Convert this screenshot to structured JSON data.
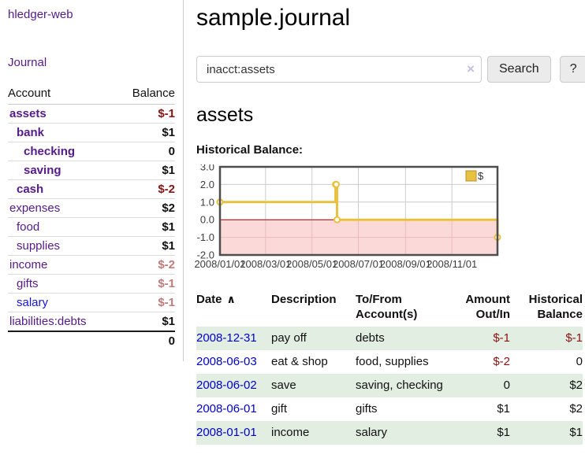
{
  "app": {
    "brand": "hledger-web",
    "nav": {
      "journal": "Journal"
    }
  },
  "icons": {
    "sort_asc": "∧",
    "clear": "×"
  },
  "sidebar": {
    "columns": {
      "account": "Account",
      "balance": "Balance"
    },
    "accounts": [
      {
        "name": "assets",
        "indent": 1,
        "balance": "$-1",
        "bold": true,
        "tone": "neg",
        "link": "purple"
      },
      {
        "name": "bank",
        "indent": 2,
        "balance": "$1",
        "bold": true,
        "tone": "",
        "link": "purple"
      },
      {
        "name": "checking",
        "indent": 3,
        "balance": "0",
        "bold": true,
        "tone": "",
        "link": "purple"
      },
      {
        "name": "saving",
        "indent": 3,
        "balance": "$1",
        "bold": true,
        "tone": "",
        "link": "purple"
      },
      {
        "name": "cash",
        "indent": 2,
        "balance": "$-2",
        "bold": true,
        "tone": "neg",
        "link": "purple"
      },
      {
        "name": "expenses",
        "indent": 1,
        "balance": "$2",
        "bold": false,
        "tone": "",
        "link": "purple"
      },
      {
        "name": "food",
        "indent": 2,
        "balance": "$1",
        "bold": false,
        "tone": "",
        "link": "purple"
      },
      {
        "name": "supplies",
        "indent": 2,
        "balance": "$1",
        "bold": false,
        "tone": "",
        "link": "purple"
      },
      {
        "name": "income",
        "indent": 1,
        "balance": "$-2",
        "bold": false,
        "tone": "neg-light",
        "link": "purple"
      },
      {
        "name": "gifts",
        "indent": 2,
        "balance": "$-1",
        "bold": false,
        "tone": "neg-light",
        "link": "purple"
      },
      {
        "name": "salary",
        "indent": 2,
        "balance": "$-1",
        "bold": false,
        "tone": "neg-light",
        "link": "blue"
      },
      {
        "name": "liabilities:debts",
        "indent": 1,
        "balance": "$1",
        "bold": false,
        "tone": "",
        "link": "purple"
      }
    ],
    "total": "0"
  },
  "main": {
    "title": "sample.journal",
    "search": {
      "value": "inacct:assets",
      "button": "Search",
      "help_button": "?"
    },
    "account_heading": "assets",
    "chart_heading": "Historical Balance:"
  },
  "chart_data": {
    "type": "line",
    "title": "Historical Balance",
    "step": true,
    "legend": [
      {
        "label": "$",
        "color": "#e8c23f"
      }
    ],
    "legend_position": "top-right",
    "x_min": "2008-01-01",
    "x_max": "2008-12-31",
    "x_ticks": [
      "2008/01/01",
      "2008/03/01",
      "2008/05/01",
      "2008/07/01",
      "2008/09/01",
      "2008/11/01"
    ],
    "y_ticks": [
      3.0,
      2.0,
      1.0,
      0.0,
      -1.0,
      -2.0
    ],
    "ylim": [
      -2.0,
      3.0
    ],
    "points": [
      {
        "date": "2008-01-01",
        "value": 1
      },
      {
        "date": "2008-06-01",
        "value": 2
      },
      {
        "date": "2008-06-02",
        "value": 2
      },
      {
        "date": "2008-06-03",
        "value": 0
      },
      {
        "date": "2008-12-31",
        "value": -1
      }
    ],
    "colors": {
      "line": "#e8c23f",
      "marker_fill": "#ffffff",
      "negative_region": "#fcd9d9",
      "zero_line": "#8b0000",
      "grid": "#cccccc",
      "grid_in_negative": "#e9bcbc",
      "border": "#4d4d4d",
      "tick_text": "#3c3c3c"
    }
  },
  "table": {
    "headers": [
      "Date",
      "Description",
      "To/From Account(s)",
      "Amount Out/In",
      "Historical Balance"
    ],
    "rows": [
      {
        "date": "2008-12-31",
        "description": "pay off",
        "accounts": "debts",
        "amount": "$-1",
        "amount_tone": "neg",
        "balance": "$-1",
        "balance_tone": "neg"
      },
      {
        "date": "2008-06-03",
        "description": "eat & shop",
        "accounts": "food, supplies",
        "amount": "$-2",
        "amount_tone": "neg",
        "balance": "0",
        "balance_tone": ""
      },
      {
        "date": "2008-06-02",
        "description": "save",
        "accounts": "saving, checking",
        "amount": "0",
        "amount_tone": "",
        "balance": "$2",
        "balance_tone": ""
      },
      {
        "date": "2008-06-01",
        "description": "gift",
        "accounts": "gifts",
        "amount": "$1",
        "amount_tone": "",
        "balance": "$2",
        "balance_tone": ""
      },
      {
        "date": "2008-01-01",
        "description": "income",
        "accounts": "salary",
        "amount": "$1",
        "amount_tone": "",
        "balance": "$1",
        "balance_tone": ""
      }
    ]
  }
}
